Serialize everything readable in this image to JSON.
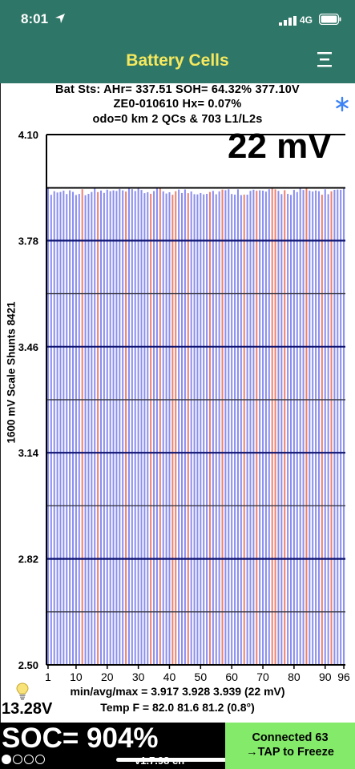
{
  "status_bar": {
    "time": "8:01",
    "network": "4G"
  },
  "header": {
    "title": "Battery Cells"
  },
  "info": {
    "line1": "Bat Sts: AHr= 337.51 SOH= 64.32% 377.10V",
    "line2": "ZE0-010610   Hx= 0.07%",
    "line3": "odo=0 km 2 QCs & 703 L1/L2s"
  },
  "chart_data": {
    "type": "bar",
    "ylabel": "1600 mV Scale   Shunts 8421",
    "ylim": [
      2.5,
      4.1
    ],
    "y_ticks": [
      "4.10",
      "3.78",
      "3.46",
      "3.14",
      "2.82",
      "2.50"
    ],
    "x_ticks": [
      "1",
      "10",
      "20",
      "30",
      "40",
      "50",
      "60",
      "70",
      "80",
      "90",
      "96"
    ],
    "cell_count": 96,
    "min": 3.917,
    "avg": 3.928,
    "max": 3.939,
    "spread_label": "22 mV",
    "shunted_cells": [
      12,
      17,
      26,
      34,
      37,
      41,
      42,
      46,
      53,
      57,
      64,
      68,
      73,
      74,
      77,
      84,
      89,
      92
    ],
    "colors": {
      "normal": "#8a8ef0",
      "shunt": "#ef8070",
      "frame": "#000000",
      "major_grid": "#0e1470",
      "minor_grid": "#3a3a44"
    }
  },
  "summary": {
    "minavgmax": "min/avg/max = 3.917  3.928  3.939   (22 mV)",
    "temp": "Temp F = 82.0  81.6  81.2  (0.8°)",
    "voltage": "13.28V"
  },
  "bottom": {
    "soc": "SOC= 904%",
    "version": "v1.7.98 cn",
    "connect_line1": "Connected 63",
    "connect_line2": "→TAP to Freeze"
  }
}
